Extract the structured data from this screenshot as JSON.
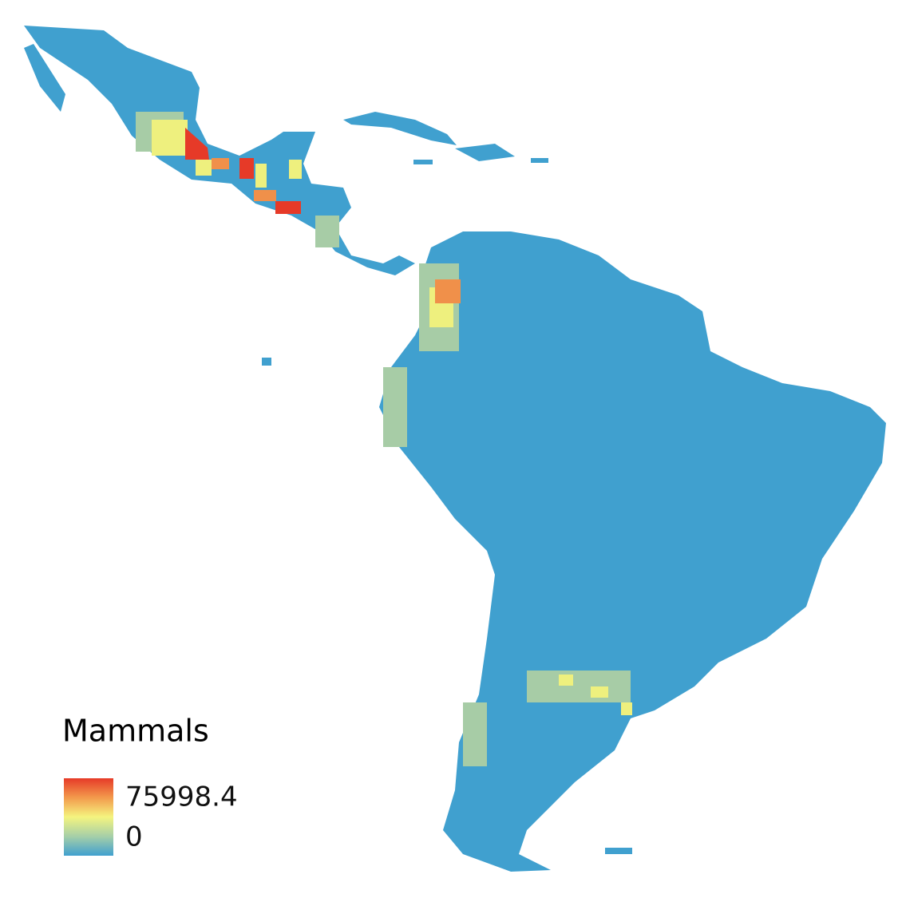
{
  "legend": {
    "title": "Mammals",
    "max": 75998.4,
    "min": 0
  }
}
